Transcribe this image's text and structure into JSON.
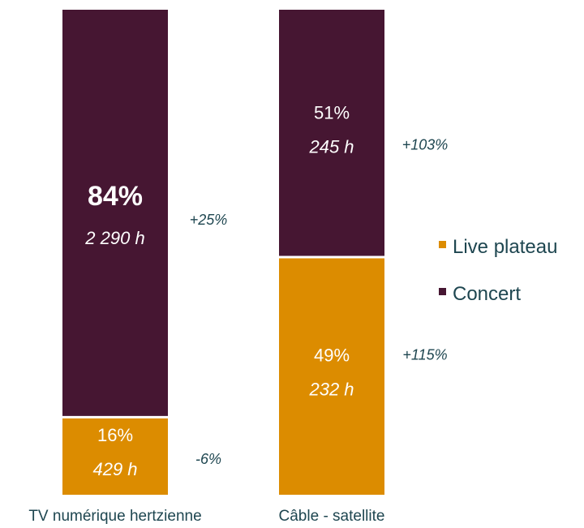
{
  "chart_data": {
    "type": "bar",
    "stacked": true,
    "percent_stacked": true,
    "categories": [
      "TV numérique hertzienne",
      "Câble - satellite"
    ],
    "series": [
      {
        "name": "Live plateau",
        "color": "#DC8C00",
        "values_percent": [
          16,
          49
        ],
        "values_hours": [
          429,
          232
        ],
        "pct_labels": [
          "16%",
          "49%"
        ],
        "hour_labels": [
          "429 h",
          "232 h"
        ],
        "change_labels": [
          "-6%",
          "+115%"
        ]
      },
      {
        "name": "Concert",
        "color": "#461632",
        "values_percent": [
          84,
          51
        ],
        "values_hours": [
          2290,
          245
        ],
        "pct_labels": [
          "84%",
          "51%"
        ],
        "hour_labels": [
          "2 290 h",
          "245 h"
        ],
        "change_labels": [
          "+25%",
          "+103%"
        ]
      }
    ],
    "legend": {
      "position": "right",
      "order": [
        "Live plateau",
        "Concert"
      ]
    },
    "grid": false,
    "axes_visible": false,
    "text_color": "#1e4650",
    "label_color": "#ffffff"
  }
}
